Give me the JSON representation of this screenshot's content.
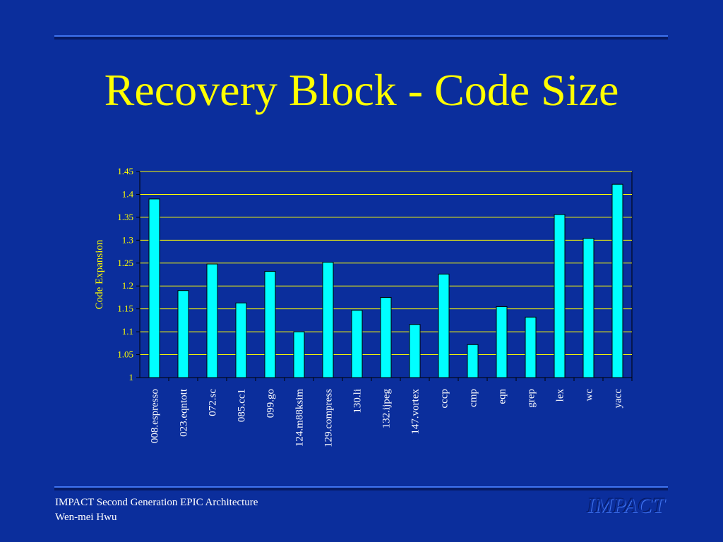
{
  "slide": {
    "title": "Recovery Block - Code Size",
    "footer_line1": "IMPACT Second Generation EPIC Architecture",
    "footer_line2": "Wen-mei Hwu",
    "logo_text": "IMPACT"
  },
  "colors": {
    "background": "#0b2e9c",
    "title": "#ffff00",
    "bar": "#00ffff",
    "axis_text": "#ffff00",
    "category_text": "#ffffff",
    "gridline": "#ffff00"
  },
  "chart_data": {
    "type": "bar",
    "ylabel": "Code Expansion",
    "xlabel": "",
    "ylim": [
      1,
      1.45
    ],
    "yticks": [
      "1",
      "1.05",
      "1.1",
      "1.15",
      "1.2",
      "1.25",
      "1.3",
      "1.35",
      "1.4",
      "1.45"
    ],
    "grid": true,
    "legend": "none",
    "categories": [
      "008.espresso",
      "023.eqntott",
      "072.sc",
      "085.cc1",
      "099.go",
      "124.m88ksim",
      "129.compress",
      "130.li",
      "132.ijpeg",
      "147.vortex",
      "cccp",
      "cmp",
      "eqn",
      "grep",
      "lex",
      "wc",
      "yacc"
    ],
    "values": [
      1.39,
      1.19,
      1.248,
      1.163,
      1.232,
      1.1,
      1.252,
      1.147,
      1.175,
      1.116,
      1.226,
      1.072,
      1.155,
      1.132,
      1.356,
      1.304,
      1.422
    ]
  }
}
